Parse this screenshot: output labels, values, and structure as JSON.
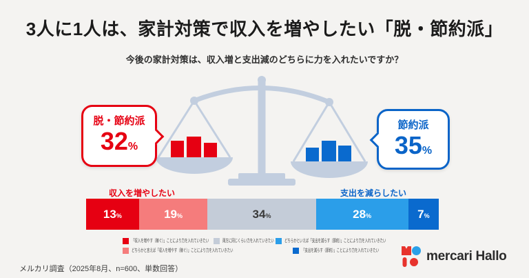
{
  "page": {
    "title": "3人に1人は、家計対策で収入を増やしたい「脱・節約派」",
    "subtitle": "今後の家計対策は、収入増と支出減のどちらに力を入れたいですか？",
    "footer": "メルカリ調査（2025年8月、n=600、単数回答）",
    "logo_text": "mercari Hallo"
  },
  "bubbles": {
    "left": {
      "label": "脱・節約派",
      "value": "32",
      "unit": "%",
      "color": "#e60012"
    },
    "right": {
      "label": "節約派",
      "value": "35",
      "unit": "%",
      "color": "#0a64c8"
    }
  },
  "bar_labels": {
    "left": "収入を増やしたい",
    "right": "支出を減らしたい"
  },
  "chart_data": {
    "type": "bar",
    "stacked": true,
    "title": "3人に1人は、家計対策で収入を増やしたい「脱・節約派」",
    "question": "今後の家計対策は、収入増と支出減のどちらに力を入れたいですか？",
    "unit": "%",
    "segments": [
      {
        "label": "「収入を増やす（稼ぐ）」ことにより力を入れていきたい",
        "value": 13,
        "color": "#e60012",
        "text_color": "#ffffff"
      },
      {
        "label": "どちらかと言えば「収入を増やす（稼ぐ）」ことにより力を入れていきたい",
        "value": 19,
        "color": "#f57c7c",
        "text_color": "#ffffff"
      },
      {
        "label": "両方に同じくらい力を入れていきたい",
        "value": 34,
        "color": "#c4ccd8",
        "text_color": "#3a3a3a"
      },
      {
        "label": "どちらかといえば「支出を減らす（節約）」ことにより力を入れていきたい",
        "value": 28,
        "color": "#2b9ee9",
        "text_color": "#ffffff"
      },
      {
        "label": "「支出を減らす（節約）」ことにより力を入れていきたい",
        "value": 7,
        "color": "#0a6ace",
        "text_color": "#ffffff"
      }
    ],
    "aggregates": {
      "income_increase_group": {
        "label": "脱・節約派",
        "value": 32
      },
      "expense_reduce_group": {
        "label": "節約派",
        "value": 35
      }
    },
    "side_labels": {
      "left": "収入を増やしたい",
      "right": "支出を減らしたい"
    }
  },
  "legend": {
    "rows": [
      [
        {
          "color": "#e60012",
          "label": "「収入を増やす（稼ぐ）」ことにより力を入れていきたい"
        },
        {
          "color": "#c4ccd8",
          "label": "両方に同じくらい力を入れていきたい"
        },
        {
          "color": "#2b9ee9",
          "label": "どちらかといえば「支出を減らす（節約）」ことにより力を入れていきたい"
        }
      ],
      [
        {
          "color": "#f57c7c",
          "label": "どちらかと言えば「収入を増やす（稼ぐ）」ことにより力を入れていきたい"
        },
        {
          "color": "#0a6ace",
          "label": "「支出を減らす（節約）」ことにより力を入れていきたい"
        }
      ]
    ]
  }
}
